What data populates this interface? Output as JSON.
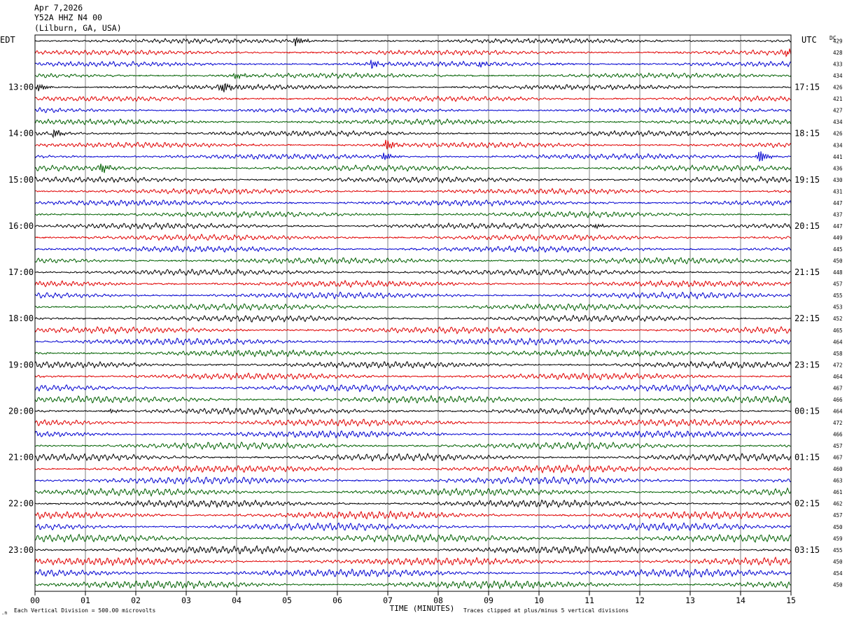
{
  "header": {
    "date": "Apr 7,2026",
    "station": "Y52A HHZ N4 00",
    "location": "(Lilburn, GA, USA)"
  },
  "chart_data": {
    "type": "line",
    "left_timezone": "EDT",
    "right_timezone": "UTC",
    "right_column_header": "DC",
    "xlabel": "TIME (MINUTES)",
    "xlim": [
      0,
      15
    ],
    "x_ticks": [
      "00",
      "01",
      "02",
      "03",
      "04",
      "05",
      "06",
      "07",
      "08",
      "09",
      "10",
      "11",
      "12",
      "13",
      "14",
      "15"
    ],
    "trace_colors": [
      "#000000",
      "#e00000",
      "#0000d0",
      "#006000"
    ],
    "left_hour_labels": [
      "13:00",
      "14:00",
      "15:00",
      "16:00",
      "17:00",
      "18:00",
      "19:00",
      "20:00",
      "21:00",
      "22:00",
      "23:00"
    ],
    "right_hour_labels": [
      "17:15",
      "18:15",
      "19:15",
      "20:15",
      "21:15",
      "22:15",
      "23:15",
      "00:15",
      "01:15",
      "02:15",
      "03:15"
    ],
    "dc_offsets": [
      429,
      428,
      433,
      434,
      426,
      421,
      427,
      434,
      426,
      434,
      441,
      436,
      430,
      431,
      447,
      437,
      447,
      449,
      445,
      450,
      448,
      457,
      455,
      453,
      452,
      465,
      464,
      458,
      472,
      464,
      467,
      466,
      464,
      472,
      466,
      457,
      467,
      460,
      463,
      461,
      462,
      457,
      450,
      459,
      455,
      450,
      454,
      450
    ],
    "events": [
      {
        "trace": 0,
        "minute": 5.15,
        "amplitude": 2.0
      },
      {
        "trace": 1,
        "minute": 14.9,
        "amplitude": 1.5
      },
      {
        "trace": 2,
        "minute": 6.65,
        "amplitude": 1.8
      },
      {
        "trace": 2,
        "minute": 8.8,
        "amplitude": 1.2
      },
      {
        "trace": 3,
        "minute": 3.95,
        "amplitude": 1.5
      },
      {
        "trace": 4,
        "minute": 3.7,
        "amplitude": 2.6
      },
      {
        "trace": 4,
        "minute": 0.05,
        "amplitude": 1.6
      },
      {
        "trace": 8,
        "minute": 0.35,
        "amplitude": 1.8
      },
      {
        "trace": 9,
        "minute": 6.95,
        "amplitude": 2.5
      },
      {
        "trace": 10,
        "minute": 6.9,
        "amplitude": 1.6
      },
      {
        "trace": 10,
        "minute": 14.35,
        "amplitude": 3.0
      },
      {
        "trace": 11,
        "minute": 1.3,
        "amplitude": 2.2
      },
      {
        "trace": 16,
        "minute": 11.1,
        "amplitude": 1.0
      },
      {
        "trace": 32,
        "minute": 1.5,
        "amplitude": 0.8
      }
    ],
    "footer_left": "Each Vertical Division =  500.00 microvolts",
    "footer_right": "Traces clipped at plus/minus 5 vertical divisions"
  }
}
